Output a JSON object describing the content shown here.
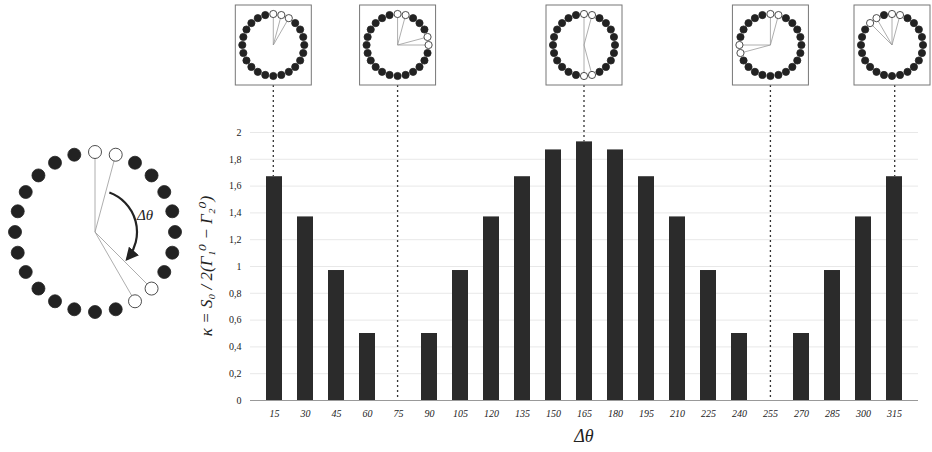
{
  "chart_data": {
    "type": "bar",
    "xlabel": "Δθ",
    "ylabel": "κ = S₀ / 2(Γ₁⁰ − Γ₂⁰)",
    "categories": [
      15,
      30,
      45,
      60,
      75,
      90,
      105,
      120,
      135,
      150,
      165,
      180,
      195,
      210,
      225,
      240,
      255,
      270,
      285,
      300,
      315
    ],
    "values": [
      1.67,
      1.37,
      0.97,
      0.5,
      0,
      0.5,
      0.97,
      1.37,
      1.67,
      1.87,
      1.93,
      1.87,
      1.67,
      1.37,
      0.97,
      0.5,
      0,
      0.5,
      0.97,
      1.37,
      1.67
    ],
    "color": "#2b2b2b",
    "ylim": [
      0,
      2
    ],
    "yticks": [
      0,
      {
        "value": 0.2,
        "label": "0,2"
      },
      {
        "value": 0.4,
        "label": "0,4"
      },
      {
        "value": 0.6,
        "label": "0,6"
      },
      {
        "value": 0.8,
        "label": "0,8"
      },
      1,
      {
        "value": 1.2,
        "label": "1,2"
      },
      {
        "value": 1.4,
        "label": "1,4"
      },
      {
        "value": 1.6,
        "label": "1,6"
      },
      {
        "value": 1.8,
        "label": "1,8"
      },
      2
    ],
    "grid": true,
    "annotations": [
      {
        "x": 15
      },
      {
        "x": 75
      },
      {
        "x": 165
      },
      {
        "x": 255
      },
      {
        "x": 315
      }
    ]
  }
}
